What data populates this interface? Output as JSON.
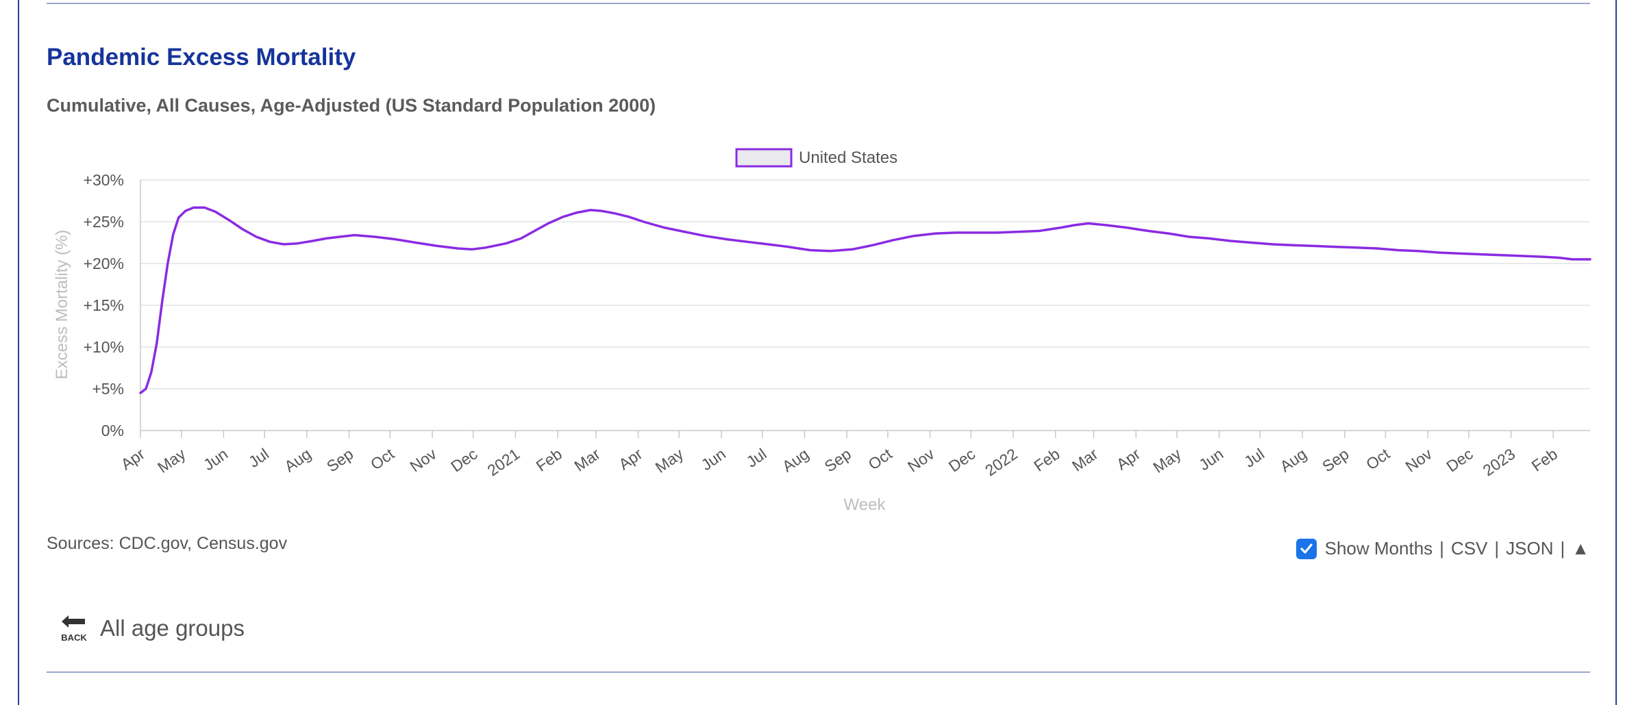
{
  "page": {
    "title": "Pandemic Excess Mortality",
    "subtitle": "Cumulative, All Causes, Age-Adjusted (US Standard Population 2000)",
    "sources": "Sources: CDC.gov, Census.gov",
    "controls": {
      "show_months_label": "Show Months",
      "show_months_checked": true,
      "csv_label": "CSV",
      "json_label": "JSON",
      "separator": "|",
      "scroll_top_icon": "▲"
    },
    "back": {
      "icon_label": "BACK",
      "label": "All age groups"
    },
    "colors": {
      "accent": "#16349b",
      "series": "#8a2be2",
      "checkbox": "#1a73e8"
    }
  },
  "chart_data": {
    "type": "line",
    "xlabel": "Week",
    "ylabel": "Excess Mortality (%)",
    "ylim": [
      0,
      30
    ],
    "yticks": [
      0,
      5,
      10,
      15,
      20,
      25,
      30
    ],
    "ytick_labels": [
      "0%",
      "+5%",
      "+10%",
      "+15%",
      "+20%",
      "+25%",
      "+30%"
    ],
    "xlim": [
      "2020-04-01",
      "2023-02-28"
    ],
    "grid": true,
    "legend_position": "top-center",
    "month_ticks": [
      {
        "date": "2020-04-01",
        "label": "Apr"
      },
      {
        "date": "2020-05-01",
        "label": "May"
      },
      {
        "date": "2020-06-01",
        "label": "Jun"
      },
      {
        "date": "2020-07-01",
        "label": "Jul"
      },
      {
        "date": "2020-08-01",
        "label": "Aug"
      },
      {
        "date": "2020-09-01",
        "label": "Sep"
      },
      {
        "date": "2020-10-01",
        "label": "Oct"
      },
      {
        "date": "2020-11-01",
        "label": "Nov"
      },
      {
        "date": "2020-12-01",
        "label": "Dec"
      },
      {
        "date": "2021-01-01",
        "label": "2021"
      },
      {
        "date": "2021-02-01",
        "label": "Feb"
      },
      {
        "date": "2021-03-01",
        "label": "Mar"
      },
      {
        "date": "2021-04-01",
        "label": "Apr"
      },
      {
        "date": "2021-05-01",
        "label": "May"
      },
      {
        "date": "2021-06-01",
        "label": "Jun"
      },
      {
        "date": "2021-07-01",
        "label": "Jul"
      },
      {
        "date": "2021-08-01",
        "label": "Aug"
      },
      {
        "date": "2021-09-01",
        "label": "Sep"
      },
      {
        "date": "2021-10-01",
        "label": "Oct"
      },
      {
        "date": "2021-11-01",
        "label": "Nov"
      },
      {
        "date": "2021-12-01",
        "label": "Dec"
      },
      {
        "date": "2022-01-01",
        "label": "2022"
      },
      {
        "date": "2022-02-01",
        "label": "Feb"
      },
      {
        "date": "2022-03-01",
        "label": "Mar"
      },
      {
        "date": "2022-04-01",
        "label": "Apr"
      },
      {
        "date": "2022-05-01",
        "label": "May"
      },
      {
        "date": "2022-06-01",
        "label": "Jun"
      },
      {
        "date": "2022-07-01",
        "label": "Jul"
      },
      {
        "date": "2022-08-01",
        "label": "Aug"
      },
      {
        "date": "2022-09-01",
        "label": "Sep"
      },
      {
        "date": "2022-10-01",
        "label": "Oct"
      },
      {
        "date": "2022-11-01",
        "label": "Nov"
      },
      {
        "date": "2022-12-01",
        "label": "Dec"
      },
      {
        "date": "2023-01-01",
        "label": "2023"
      },
      {
        "date": "2023-02-01",
        "label": "Feb"
      }
    ],
    "series": [
      {
        "name": "United States",
        "color": "#8a2be2",
        "points": [
          [
            "2020-04-01",
            4.5
          ],
          [
            "2020-04-05",
            5.0
          ],
          [
            "2020-04-09",
            7.0
          ],
          [
            "2020-04-13",
            10.5
          ],
          [
            "2020-04-17",
            15.5
          ],
          [
            "2020-04-21",
            20.0
          ],
          [
            "2020-04-25",
            23.5
          ],
          [
            "2020-04-29",
            25.5
          ],
          [
            "2020-05-04",
            26.3
          ],
          [
            "2020-05-10",
            26.7
          ],
          [
            "2020-05-18",
            26.7
          ],
          [
            "2020-05-26",
            26.2
          ],
          [
            "2020-06-05",
            25.2
          ],
          [
            "2020-06-15",
            24.1
          ],
          [
            "2020-06-25",
            23.2
          ],
          [
            "2020-07-05",
            22.6
          ],
          [
            "2020-07-15",
            22.3
          ],
          [
            "2020-07-25",
            22.4
          ],
          [
            "2020-08-05",
            22.7
          ],
          [
            "2020-08-15",
            23.0
          ],
          [
            "2020-08-25",
            23.2
          ],
          [
            "2020-09-05",
            23.4
          ],
          [
            "2020-09-20",
            23.2
          ],
          [
            "2020-10-05",
            22.9
          ],
          [
            "2020-10-20",
            22.5
          ],
          [
            "2020-11-05",
            22.1
          ],
          [
            "2020-11-20",
            21.8
          ],
          [
            "2020-11-30",
            21.7
          ],
          [
            "2020-12-10",
            21.9
          ],
          [
            "2020-12-25",
            22.4
          ],
          [
            "2021-01-05",
            23.0
          ],
          [
            "2021-01-15",
            23.9
          ],
          [
            "2021-01-25",
            24.8
          ],
          [
            "2021-02-05",
            25.6
          ],
          [
            "2021-02-15",
            26.1
          ],
          [
            "2021-02-25",
            26.4
          ],
          [
            "2021-03-05",
            26.3
          ],
          [
            "2021-03-15",
            26.0
          ],
          [
            "2021-03-25",
            25.6
          ],
          [
            "2021-04-05",
            25.0
          ],
          [
            "2021-04-20",
            24.3
          ],
          [
            "2021-05-05",
            23.8
          ],
          [
            "2021-05-20",
            23.3
          ],
          [
            "2021-06-05",
            22.9
          ],
          [
            "2021-06-20",
            22.6
          ],
          [
            "2021-07-05",
            22.3
          ],
          [
            "2021-07-20",
            22.0
          ],
          [
            "2021-08-05",
            21.6
          ],
          [
            "2021-08-20",
            21.5
          ],
          [
            "2021-09-05",
            21.7
          ],
          [
            "2021-09-20",
            22.2
          ],
          [
            "2021-10-05",
            22.8
          ],
          [
            "2021-10-20",
            23.3
          ],
          [
            "2021-11-05",
            23.6
          ],
          [
            "2021-11-20",
            23.7
          ],
          [
            "2021-12-05",
            23.7
          ],
          [
            "2021-12-20",
            23.7
          ],
          [
            "2022-01-05",
            23.8
          ],
          [
            "2022-01-20",
            23.9
          ],
          [
            "2022-02-05",
            24.3
          ],
          [
            "2022-02-15",
            24.6
          ],
          [
            "2022-02-25",
            24.8
          ],
          [
            "2022-03-10",
            24.6
          ],
          [
            "2022-03-25",
            24.3
          ],
          [
            "2022-04-10",
            23.9
          ],
          [
            "2022-04-25",
            23.6
          ],
          [
            "2022-05-10",
            23.2
          ],
          [
            "2022-05-25",
            23.0
          ],
          [
            "2022-06-10",
            22.7
          ],
          [
            "2022-06-25",
            22.5
          ],
          [
            "2022-07-10",
            22.3
          ],
          [
            "2022-07-25",
            22.2
          ],
          [
            "2022-08-10",
            22.1
          ],
          [
            "2022-08-25",
            22.0
          ],
          [
            "2022-09-10",
            21.9
          ],
          [
            "2022-09-25",
            21.8
          ],
          [
            "2022-10-10",
            21.6
          ],
          [
            "2022-10-25",
            21.5
          ],
          [
            "2022-11-10",
            21.3
          ],
          [
            "2022-11-25",
            21.2
          ],
          [
            "2022-12-10",
            21.1
          ],
          [
            "2022-12-25",
            21.0
          ],
          [
            "2023-01-10",
            20.9
          ],
          [
            "2023-01-25",
            20.8
          ],
          [
            "2023-02-05",
            20.7
          ],
          [
            "2023-02-15",
            20.5
          ],
          [
            "2023-02-28",
            20.5
          ]
        ]
      }
    ]
  }
}
